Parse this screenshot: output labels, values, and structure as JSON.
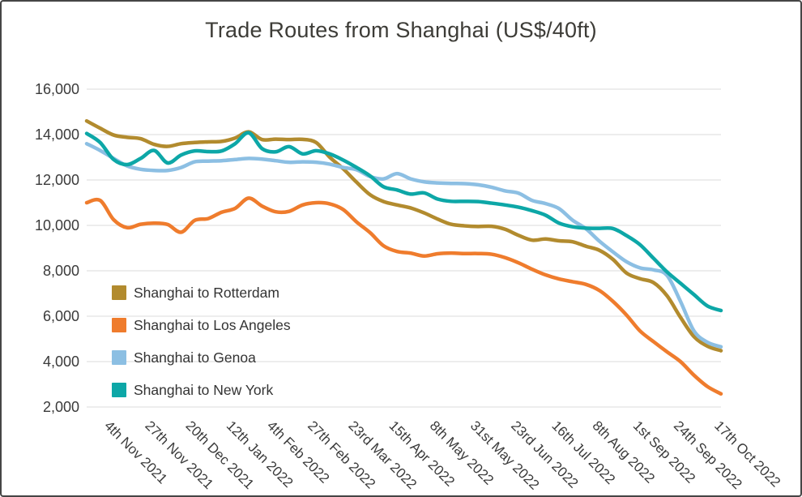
{
  "chart_data": {
    "type": "line",
    "title": "Trade Routes from Shanghai (US$/40ft)",
    "grid": "horizontal",
    "legend_position": "inside-lower-left",
    "y_axis": {
      "min": 2000,
      "max": 16000,
      "tick_step": 2000,
      "ticks": [
        16000,
        14000,
        12000,
        10000,
        8000,
        6000,
        4000,
        2000
      ]
    },
    "x_labels": [
      "4th Nov 2021",
      "27th Nov 2021",
      "20th Dec 2021",
      "12th Jan 2022",
      "4th Feb 2022",
      "27th Feb 2022",
      "23rd Mar 2022",
      "15th Apr 2022",
      "8th May 2022",
      "31st May 2022",
      "23rd Jun 2022",
      "16th Jul 2022",
      "8th Aug 2022",
      "1st Sep 2022",
      "24th Sep 2022",
      "17th Oct 2022"
    ],
    "series": [
      {
        "name": "Shanghai to Rotterdam",
        "color": "#b28b2e",
        "values": [
          14600,
          14280,
          13980,
          13880,
          13820,
          13570,
          13480,
          13600,
          13650,
          13680,
          13700,
          13850,
          14120,
          13780,
          13800,
          13780,
          13790,
          13650,
          13010,
          12500,
          11900,
          11350,
          11050,
          10900,
          10770,
          10550,
          10280,
          10050,
          9980,
          9950,
          9960,
          9830,
          9560,
          9350,
          9400,
          9320,
          9280,
          9080,
          8900,
          8500,
          7900,
          7650,
          7480,
          6900,
          5950,
          5100,
          4680,
          4480
        ]
      },
      {
        "name": "Shanghai to Los Angeles",
        "color": "#ef7c2d",
        "values": [
          11000,
          11100,
          10250,
          9900,
          10050,
          10100,
          10040,
          9700,
          10220,
          10300,
          10580,
          10750,
          11200,
          10850,
          10600,
          10620,
          10900,
          11000,
          10950,
          10700,
          10150,
          9680,
          9100,
          8850,
          8780,
          8650,
          8750,
          8780,
          8760,
          8760,
          8730,
          8580,
          8350,
          8070,
          7820,
          7640,
          7520,
          7400,
          7130,
          6650,
          6050,
          5350,
          4880,
          4430,
          4000,
          3400,
          2900,
          2580
        ]
      },
      {
        "name": "Shanghai to Genoa",
        "color": "#8cbfe3",
        "values": [
          13600,
          13300,
          12950,
          12620,
          12470,
          12420,
          12420,
          12550,
          12800,
          12830,
          12850,
          12900,
          12950,
          12920,
          12850,
          12780,
          12800,
          12780,
          12700,
          12550,
          12450,
          12150,
          12050,
          12280,
          12050,
          11920,
          11870,
          11850,
          11840,
          11790,
          11680,
          11520,
          11420,
          11100,
          10960,
          10740,
          10230,
          9850,
          9300,
          8830,
          8400,
          8130,
          8040,
          7800,
          6650,
          5350,
          4850,
          4650
        ]
      },
      {
        "name": "Shanghai to New York",
        "color": "#0da7a7",
        "values": [
          14050,
          13650,
          12900,
          12680,
          12950,
          13300,
          12750,
          13100,
          13280,
          13250,
          13280,
          13600,
          14080,
          13380,
          13240,
          13470,
          13150,
          13290,
          13150,
          12880,
          12550,
          12180,
          11700,
          11560,
          11380,
          11430,
          11160,
          11060,
          11060,
          11050,
          10980,
          10900,
          10800,
          10650,
          10450,
          10100,
          9940,
          9880,
          9870,
          9860,
          9550,
          9150,
          8550,
          7950,
          7450,
          6950,
          6450,
          6250
        ]
      }
    ]
  }
}
